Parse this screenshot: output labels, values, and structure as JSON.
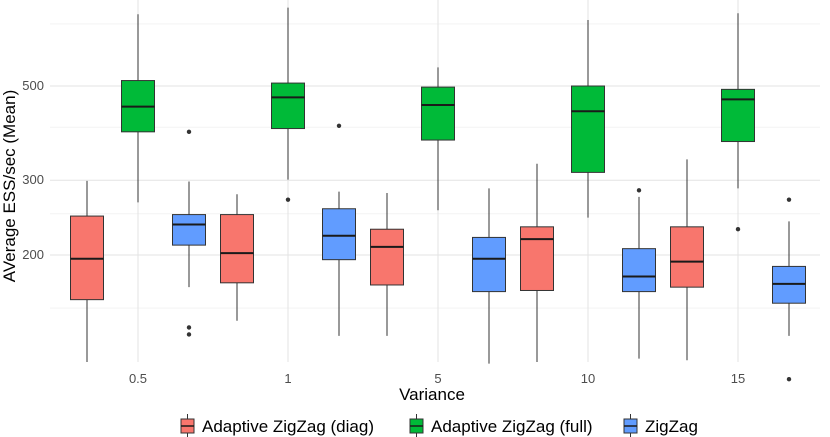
{
  "chart_data": {
    "type": "boxplot",
    "xlabel": "Variance",
    "ylabel": "AVerage ESS/sec (Mean)",
    "y_scale": "log",
    "y_ticks": [
      200,
      300,
      500
    ],
    "grid": true,
    "legend_position": "bottom",
    "categories": [
      "0.5",
      "1",
      "5",
      "10",
      "15"
    ],
    "series": [
      {
        "name": "Adaptive ZigZag (diag)",
        "color": "#F8766D",
        "boxes": [
          {
            "min": 112,
            "q1": 157,
            "median": 196,
            "q3": 247,
            "max": 299,
            "outliers": []
          },
          {
            "min": 140,
            "q1": 172,
            "median": 202,
            "q3": 249,
            "max": 278,
            "outliers": []
          },
          {
            "min": 129,
            "q1": 170,
            "median": 209,
            "q3": 230,
            "max": 280,
            "outliers": []
          },
          {
            "min": 112,
            "q1": 165,
            "median": 218,
            "q3": 233,
            "max": 328,
            "outliers": []
          },
          {
            "min": 113,
            "q1": 168,
            "median": 193,
            "q3": 233,
            "max": 336,
            "outliers": []
          }
        ]
      },
      {
        "name": "Adaptive ZigZag (full)",
        "color": "#00BA38",
        "boxes": [
          {
            "min": 266,
            "q1": 390,
            "median": 447,
            "q3": 515,
            "max": 738,
            "outliers": []
          },
          {
            "min": 301,
            "q1": 397,
            "median": 470,
            "q3": 508,
            "max": 765,
            "outliers": [
              270
            ]
          },
          {
            "min": 255,
            "q1": 373,
            "median": 451,
            "q3": 497,
            "max": 553,
            "outliers": []
          },
          {
            "min": 245,
            "q1": 313,
            "median": 436,
            "q3": 500,
            "max": 715,
            "outliers": []
          },
          {
            "min": 287,
            "q1": 370,
            "median": 465,
            "q3": 491,
            "max": 742,
            "outliers": [
              230
            ]
          }
        ]
      },
      {
        "name": "ZigZag",
        "color": "#619CFF",
        "boxes": [
          {
            "min": 168,
            "q1": 211,
            "median": 236,
            "q3": 249,
            "max": 298,
            "outliers": [
              390,
              135,
              130
            ]
          },
          {
            "min": 129,
            "q1": 195,
            "median": 222,
            "q3": 257,
            "max": 282,
            "outliers": [
              403
            ]
          },
          {
            "min": 111,
            "q1": 164,
            "median": 196,
            "q3": 220,
            "max": 287,
            "outliers": []
          },
          {
            "min": 114,
            "q1": 164,
            "median": 178,
            "q3": 207,
            "max": 274,
            "outliers": [
              284
            ]
          },
          {
            "min": 129,
            "q1": 154,
            "median": 171,
            "q3": 188,
            "max": 240,
            "outliers": [
              102,
              270
            ]
          }
        ]
      }
    ]
  }
}
